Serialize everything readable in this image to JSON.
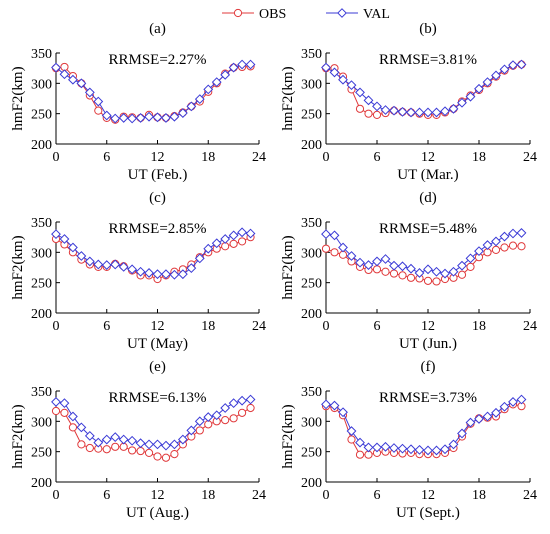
{
  "legend": {
    "placement": "top-center",
    "entries": [
      {
        "label": "OBS",
        "color": "#e0393b",
        "marker": "circle"
      },
      {
        "label": "VAL",
        "color": "#3b3bd6",
        "marker": "diamond"
      }
    ]
  },
  "chart_data": [
    {
      "type": "line",
      "panel_label": "(a)",
      "annotation": "RRMSE=2.27%",
      "xlabel": "UT (Feb.)",
      "ylabel": "hmF2(km)",
      "xlim": [
        0,
        24
      ],
      "ylim": [
        200,
        350
      ],
      "xticks": [
        0,
        6,
        12,
        18,
        24
      ],
      "yticks": [
        200,
        250,
        300,
        350
      ],
      "series": [
        {
          "name": "OBS",
          "x": [
            0,
            1,
            2,
            3,
            4,
            5,
            6,
            7,
            8,
            9,
            10,
            11,
            12,
            13,
            14,
            15,
            16,
            17,
            18,
            19,
            20,
            21,
            22,
            23
          ],
          "values": [
            325,
            327,
            312,
            300,
            280,
            255,
            243,
            240,
            245,
            244,
            243,
            248,
            244,
            243,
            246,
            252,
            262,
            270,
            286,
            300,
            316,
            326,
            327,
            328
          ]
        },
        {
          "name": "VAL",
          "x": [
            0,
            1,
            2,
            3,
            4,
            5,
            6,
            7,
            8,
            9,
            10,
            11,
            12,
            13,
            14,
            15,
            16,
            17,
            18,
            19,
            20,
            21,
            22,
            23
          ],
          "values": [
            326,
            315,
            306,
            300,
            285,
            270,
            247,
            242,
            243,
            242,
            243,
            245,
            244,
            243,
            245,
            251,
            262,
            274,
            290,
            302,
            314,
            326,
            331,
            331
          ]
        }
      ]
    },
    {
      "type": "line",
      "panel_label": "(b)",
      "annotation": "RRMSE=3.81%",
      "xlabel": "UT (Mar.)",
      "ylabel": "hmF2(km)",
      "xlim": [
        0,
        24
      ],
      "ylim": [
        200,
        350
      ],
      "xticks": [
        0,
        6,
        12,
        18,
        24
      ],
      "yticks": [
        200,
        250,
        300,
        350
      ],
      "series": [
        {
          "name": "OBS",
          "x": [
            0,
            1,
            2,
            3,
            4,
            5,
            6,
            7,
            8,
            9,
            10,
            11,
            12,
            13,
            14,
            15,
            16,
            17,
            18,
            19,
            20,
            21,
            22,
            23
          ],
          "values": [
            325,
            325,
            311,
            290,
            258,
            250,
            248,
            251,
            255,
            253,
            252,
            250,
            248,
            248,
            252,
            258,
            270,
            280,
            289,
            300,
            311,
            321,
            329,
            331
          ]
        },
        {
          "name": "VAL",
          "x": [
            0,
            1,
            2,
            3,
            4,
            5,
            6,
            7,
            8,
            9,
            10,
            11,
            12,
            13,
            14,
            15,
            16,
            17,
            18,
            19,
            20,
            21,
            22,
            23
          ],
          "values": [
            326,
            318,
            306,
            297,
            285,
            272,
            262,
            256,
            255,
            253,
            252,
            252,
            252,
            252,
            254,
            258,
            268,
            278,
            291,
            302,
            313,
            323,
            330,
            331
          ]
        }
      ]
    },
    {
      "type": "line",
      "panel_label": "(c)",
      "annotation": "RRMSE=2.85%",
      "xlabel": "UT (May)",
      "ylabel": "hmF2(km)",
      "xlim": [
        0,
        24
      ],
      "ylim": [
        200,
        350
      ],
      "xticks": [
        0,
        6,
        12,
        18,
        24
      ],
      "yticks": [
        200,
        250,
        300,
        350
      ],
      "series": [
        {
          "name": "OBS",
          "x": [
            0,
            1,
            2,
            3,
            4,
            5,
            6,
            7,
            8,
            9,
            10,
            11,
            12,
            13,
            14,
            15,
            16,
            17,
            18,
            19,
            20,
            21,
            22,
            23
          ],
          "values": [
            322,
            313,
            300,
            288,
            280,
            276,
            276,
            281,
            277,
            270,
            262,
            262,
            256,
            262,
            268,
            272,
            280,
            292,
            300,
            306,
            310,
            314,
            318,
            325
          ]
        },
        {
          "name": "VAL",
          "x": [
            0,
            1,
            2,
            3,
            4,
            5,
            6,
            7,
            8,
            9,
            10,
            11,
            12,
            13,
            14,
            15,
            16,
            17,
            18,
            19,
            20,
            21,
            22,
            23
          ],
          "values": [
            330,
            322,
            308,
            294,
            285,
            280,
            279,
            280,
            276,
            272,
            268,
            266,
            264,
            264,
            263,
            264,
            274,
            290,
            306,
            315,
            322,
            328,
            333,
            331
          ]
        }
      ]
    },
    {
      "type": "line",
      "panel_label": "(d)",
      "annotation": "RRMSE=5.48%",
      "xlabel": "UT (Jun.)",
      "ylabel": "hmF2(km)",
      "xlim": [
        0,
        24
      ],
      "ylim": [
        200,
        350
      ],
      "xticks": [
        0,
        6,
        12,
        18,
        24
      ],
      "yticks": [
        200,
        250,
        300,
        350
      ],
      "series": [
        {
          "name": "OBS",
          "x": [
            0,
            1,
            2,
            3,
            4,
            5,
            6,
            7,
            8,
            9,
            10,
            11,
            12,
            13,
            14,
            15,
            16,
            17,
            18,
            19,
            20,
            21,
            22,
            23
          ],
          "values": [
            306,
            300,
            296,
            285,
            276,
            271,
            272,
            268,
            265,
            262,
            258,
            257,
            253,
            252,
            256,
            258,
            263,
            276,
            292,
            300,
            304,
            308,
            311,
            310
          ]
        },
        {
          "name": "VAL",
          "x": [
            0,
            1,
            2,
            3,
            4,
            5,
            6,
            7,
            8,
            9,
            10,
            11,
            12,
            13,
            14,
            15,
            16,
            17,
            18,
            19,
            20,
            21,
            22,
            23
          ],
          "values": [
            330,
            328,
            308,
            294,
            283,
            279,
            285,
            289,
            278,
            277,
            273,
            266,
            272,
            268,
            265,
            268,
            278,
            290,
            302,
            312,
            318,
            326,
            331,
            332
          ]
        }
      ]
    },
    {
      "type": "line",
      "panel_label": "(e)",
      "annotation": "RRMSE=6.13%",
      "xlabel": "UT (Aug.)",
      "ylabel": "hmF2(km)",
      "xlim": [
        0,
        24
      ],
      "ylim": [
        200,
        350
      ],
      "xticks": [
        0,
        6,
        12,
        18,
        24
      ],
      "yticks": [
        200,
        250,
        300,
        350
      ],
      "series": [
        {
          "name": "OBS",
          "x": [
            0,
            1,
            2,
            3,
            4,
            5,
            6,
            7,
            8,
            9,
            10,
            11,
            12,
            13,
            14,
            15,
            16,
            17,
            18,
            19,
            20,
            21,
            22,
            23
          ],
          "values": [
            317,
            314,
            290,
            262,
            256,
            255,
            254,
            258,
            258,
            252,
            251,
            248,
            242,
            240,
            246,
            262,
            275,
            285,
            295,
            300,
            302,
            305,
            314,
            322
          ]
        },
        {
          "name": "VAL",
          "x": [
            0,
            1,
            2,
            3,
            4,
            5,
            6,
            7,
            8,
            9,
            10,
            11,
            12,
            13,
            14,
            15,
            16,
            17,
            18,
            19,
            20,
            21,
            22,
            23
          ],
          "values": [
            332,
            330,
            308,
            290,
            276,
            265,
            270,
            274,
            270,
            268,
            264,
            262,
            262,
            260,
            262,
            270,
            285,
            300,
            307,
            310,
            322,
            330,
            334,
            336
          ]
        }
      ]
    },
    {
      "type": "line",
      "panel_label": "(f)",
      "annotation": "RRMSE=3.73%",
      "xlabel": "UT (Sept.)",
      "ylabel": "hmF2(km)",
      "xlim": [
        0,
        24
      ],
      "ylim": [
        200,
        350
      ],
      "xticks": [
        0,
        6,
        12,
        18,
        24
      ],
      "yticks": [
        200,
        250,
        300,
        350
      ],
      "series": [
        {
          "name": "OBS",
          "x": [
            0,
            1,
            2,
            3,
            4,
            5,
            6,
            7,
            8,
            9,
            10,
            11,
            12,
            13,
            14,
            15,
            16,
            17,
            18,
            19,
            20,
            21,
            22,
            23
          ],
          "values": [
            325,
            322,
            310,
            270,
            245,
            245,
            248,
            250,
            248,
            247,
            248,
            246,
            246,
            246,
            248,
            256,
            275,
            296,
            305,
            306,
            308,
            320,
            328,
            325
          ]
        },
        {
          "name": "VAL",
          "x": [
            0,
            1,
            2,
            3,
            4,
            5,
            6,
            7,
            8,
            9,
            10,
            11,
            12,
            13,
            14,
            15,
            16,
            17,
            18,
            19,
            20,
            21,
            22,
            23
          ],
          "values": [
            328,
            326,
            315,
            284,
            265,
            257,
            257,
            258,
            256,
            255,
            254,
            253,
            252,
            252,
            254,
            262,
            280,
            298,
            304,
            308,
            314,
            324,
            332,
            336
          ]
        }
      ]
    }
  ]
}
